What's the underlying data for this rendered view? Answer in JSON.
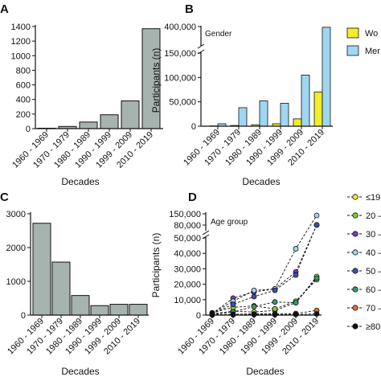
{
  "colors": {
    "grey_bar": "#a7b3ae",
    "women": "#f1ed28",
    "men": "#9fd6f1",
    "axis": "#111111"
  },
  "chart_data": [
    {
      "panel": "A",
      "type": "bar",
      "categories": [
        "1960 - 1969",
        "1970 - 1979",
        "1980 - 1989",
        "1990 - 1999",
        "1999 - 2009",
        "2010 - 2019"
      ],
      "values": [
        5,
        30,
        90,
        190,
        380,
        1370
      ],
      "xlabel": "Decades",
      "ylabel": "",
      "ylim": [
        0,
        1400
      ],
      "yticks": [
        0,
        200,
        400,
        600,
        800,
        1000,
        1200,
        1400
      ],
      "ytick_labels": [
        "0",
        "200",
        "400",
        "600",
        "800",
        "1000",
        "1200",
        "1400"
      ]
    },
    {
      "panel": "B",
      "type": "bar",
      "annotation": "Gender",
      "categories": [
        "1960 - 1969",
        "1970 - 1979",
        "1980 - 1989",
        "1990 - 1999",
        "1999 - 2009",
        "2010 - 2019"
      ],
      "series": [
        {
          "name": "Wo",
          "values": [
            600,
            1500,
            3000,
            5000,
            15000,
            70000
          ]
        },
        {
          "name": "Mer",
          "values": [
            5000,
            38000,
            52000,
            47000,
            105000,
            390000
          ]
        }
      ],
      "xlabel": "Decades",
      "ylabel": "Participants (n)",
      "ylim": [
        0,
        400000
      ],
      "axis_break": [
        150000,
        400000
      ],
      "ytick_labels": [
        "0",
        "50,000",
        "100,000",
        "150,000",
        "400,000"
      ],
      "legend": "right"
    },
    {
      "panel": "C",
      "type": "bar",
      "categories": [
        "1960 - 1969",
        "1970 - 1979",
        "1980 - 1989",
        "1990 - 1999",
        "1999 - 2009",
        "2010 - 2019"
      ],
      "values": [
        2720,
        1570,
        580,
        280,
        320,
        320
      ],
      "xlabel": "Decades",
      "ylabel": "",
      "ylim": [
        0,
        3000
      ],
      "ytick_labels": [
        "0",
        "1000",
        "2000",
        "3000"
      ]
    },
    {
      "panel": "D",
      "type": "line",
      "annotation": "Age group",
      "categories": [
        "1960 - 1969",
        "1970 - 1979",
        "1980 - 1989",
        "1990 - 1999",
        "1999 - 2009",
        "2010 - 2019"
      ],
      "series": [
        {
          "name": "≤19",
          "color": "#f1ed28",
          "values": [
            800,
            2500,
            2000,
            3000,
            8000,
            25000
          ]
        },
        {
          "name": "20 –",
          "color": "#7bcf3f",
          "values": [
            1500,
            5000,
            6000,
            4000,
            9000,
            23000
          ]
        },
        {
          "name": "30 –",
          "color": "#7a3fb0",
          "values": [
            1000,
            11000,
            15000,
            17000,
            28000,
            80000
          ]
        },
        {
          "name": "40 –",
          "color": "#9fd6f1",
          "values": [
            1200,
            9000,
            16000,
            17000,
            43000,
            140000
          ]
        },
        {
          "name": "50 –",
          "color": "#3f4fbf",
          "values": [
            900,
            7000,
            12000,
            16000,
            26000,
            82000
          ]
        },
        {
          "name": "60 –",
          "color": "#2f9e73",
          "values": [
            500,
            2000,
            5500,
            8500,
            8000,
            24000
          ]
        },
        {
          "name": "70 –",
          "color": "#e0703a",
          "values": [
            200,
            500,
            800,
            800,
            1000,
            3000
          ]
        },
        {
          "name": "≥80",
          "color": "#111111",
          "values": [
            50,
            200,
            300,
            300,
            400,
            800
          ]
        }
      ],
      "xlabel": "Decades",
      "ylabel": "Participants (n)",
      "ylim": [
        0,
        150000
      ],
      "axis_break": [
        50000,
        80000
      ],
      "ytick_labels": [
        "0",
        "10,000",
        "20,000",
        "30,000",
        "40,000",
        "50,000",
        "80,000",
        "150,000"
      ],
      "legend": "right"
    }
  ]
}
